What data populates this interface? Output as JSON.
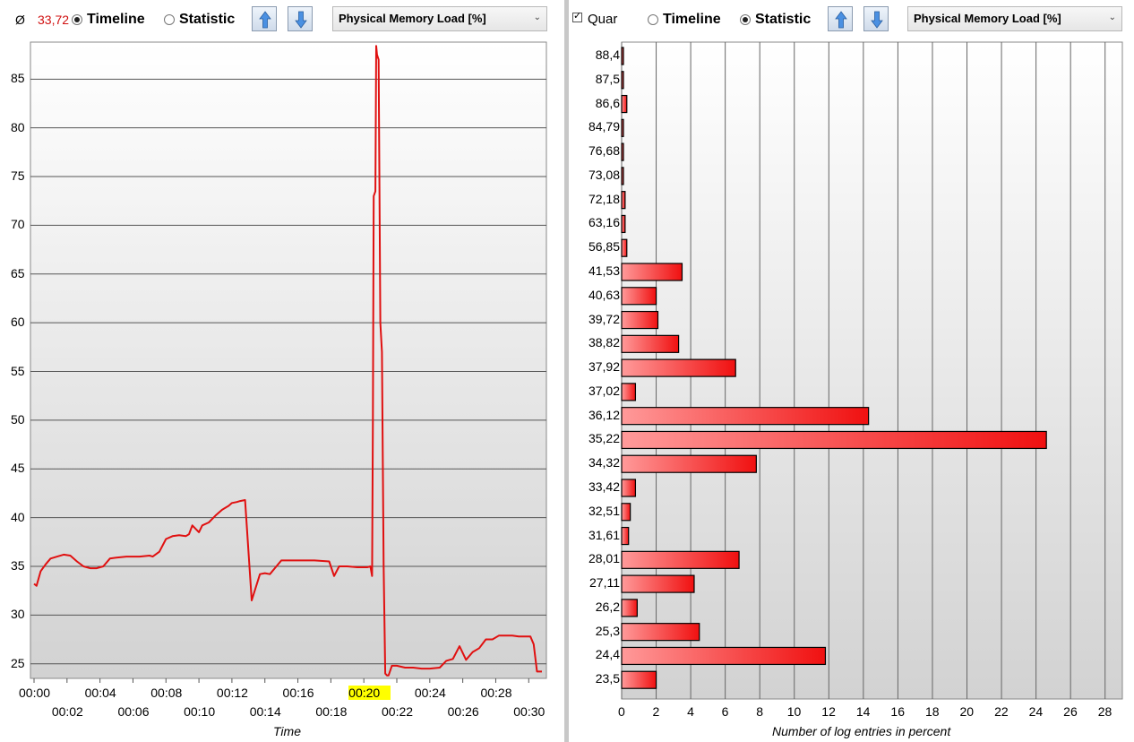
{
  "left_panel": {
    "average_symbol": "Ø",
    "average_value": "33,72",
    "options": [
      {
        "label": "Timeline",
        "selected": true
      },
      {
        "label": "Statistic",
        "selected": false
      }
    ],
    "up_icon": "arrow-up-icon",
    "down_icon": "arrow-down-icon",
    "dropdown_value": "Physical Memory Load [%]",
    "chart_data": {
      "type": "line",
      "xlabel": "Time",
      "ylabel": "",
      "x_ticks_top": [
        "00:00",
        "00:04",
        "00:08",
        "00:12",
        "00:16",
        "00:20",
        "00:24",
        "00:28"
      ],
      "x_ticks_bottom": [
        "00:02",
        "00:06",
        "00:10",
        "00:14",
        "00:18",
        "00:22",
        "00:26",
        "00:30"
      ],
      "y_ticks": [
        "25",
        "30",
        "35",
        "40",
        "45",
        "50",
        "55",
        "60",
        "65",
        "70",
        "75",
        "80",
        "85"
      ],
      "ylim": [
        23.5,
        88.8
      ],
      "xlim_minutes": [
        0,
        30.8
      ],
      "highlighted_tick": "00:20",
      "series": [
        {
          "color": "#e01010",
          "x_minutes": [
            0,
            0.15,
            0.4,
            0.7,
            1.0,
            1.4,
            1.8,
            2.2,
            2.6,
            3.0,
            3.4,
            3.8,
            4.0,
            4.2,
            4.6,
            5.0,
            5.6,
            6.0,
            6.4,
            7.0,
            7.2,
            7.6,
            8.0,
            8.4,
            8.8,
            9.2,
            9.4,
            9.6,
            10.0,
            10.2,
            10.6,
            11.0,
            11.4,
            11.8,
            12.0,
            12.3,
            12.5,
            12.8,
            13.2,
            13.7,
            14.0,
            14.3,
            15.0,
            16.0,
            17.0,
            17.9,
            18.2,
            18.5,
            19.0,
            19.6,
            20.2,
            20.4,
            20.5,
            20.55,
            20.6,
            20.7,
            20.75,
            20.8,
            20.9,
            21.0,
            21.1,
            21.2,
            21.3,
            21.4,
            21.5,
            21.7,
            22.0,
            22.5,
            23.0,
            23.5,
            24.0,
            24.6,
            25.0,
            25.4,
            25.8,
            26.2,
            26.6,
            27.0,
            27.4,
            27.8,
            28.2,
            28.6,
            29.0,
            29.4,
            29.8,
            30.1,
            30.3,
            30.5,
            30.8
          ],
          "y": [
            33.2,
            33.0,
            34.5,
            35.2,
            35.8,
            36.0,
            36.2,
            36.1,
            35.5,
            35.0,
            34.8,
            34.8,
            34.9,
            35.0,
            35.8,
            35.9,
            36.0,
            36.0,
            36.0,
            36.1,
            36.0,
            36.5,
            37.8,
            38.1,
            38.2,
            38.1,
            38.3,
            39.2,
            38.5,
            39.2,
            39.5,
            40.2,
            40.8,
            41.2,
            41.5,
            41.6,
            41.7,
            41.8,
            31.5,
            34.2,
            34.3,
            34.2,
            35.6,
            35.6,
            35.6,
            35.5,
            34.0,
            35.0,
            35.0,
            34.9,
            34.9,
            35.0,
            34.0,
            50.0,
            73.0,
            73.5,
            88.4,
            87.5,
            87.0,
            60.0,
            57.0,
            35.0,
            24.0,
            23.8,
            23.8,
            24.8,
            24.8,
            24.6,
            24.6,
            24.5,
            24.5,
            24.6,
            25.3,
            25.5,
            26.8,
            25.4,
            26.2,
            26.6,
            27.5,
            27.5,
            27.9,
            27.9,
            27.9,
            27.8,
            27.8,
            27.8,
            27.0,
            24.2,
            24.2
          ]
        }
      ]
    }
  },
  "right_panel": {
    "checkbox_label": "Quar",
    "checkbox_checked": true,
    "options": [
      {
        "label": "Timeline",
        "selected": false
      },
      {
        "label": "Statistic",
        "selected": true
      }
    ],
    "up_icon": "arrow-up-icon",
    "down_icon": "arrow-down-icon",
    "dropdown_value": "Physical Memory Load [%]",
    "chart_data": {
      "type": "bar",
      "orientation": "horizontal",
      "xlabel": "Number of log entries in percent",
      "ylabel": "",
      "x_ticks": [
        "0",
        "2",
        "4",
        "6",
        "8",
        "10",
        "12",
        "14",
        "16",
        "18",
        "20",
        "22",
        "24",
        "26",
        "28"
      ],
      "xlim": [
        0,
        29
      ],
      "categories": [
        "88,4",
        "87,5",
        "86,6",
        "84,79",
        "76,68",
        "73,08",
        "72,18",
        "63,16",
        "56,85",
        "41,53",
        "40,63",
        "39,72",
        "38,82",
        "37,92",
        "37,02",
        "36,12",
        "35,22",
        "34,32",
        "33,42",
        "32,51",
        "31,61",
        "28,01",
        "27,11",
        "26,2",
        "25,3",
        "24,4",
        "23,5"
      ],
      "values": [
        0.1,
        0.1,
        0.3,
        0.1,
        0.1,
        0.1,
        0.2,
        0.2,
        0.3,
        3.5,
        2.0,
        2.1,
        3.3,
        6.6,
        0.8,
        14.3,
        24.6,
        7.8,
        0.8,
        0.5,
        0.4,
        6.8,
        4.2,
        0.9,
        4.5,
        11.8,
        2.0
      ],
      "bar_color": "#f01515",
      "grid": true
    }
  }
}
